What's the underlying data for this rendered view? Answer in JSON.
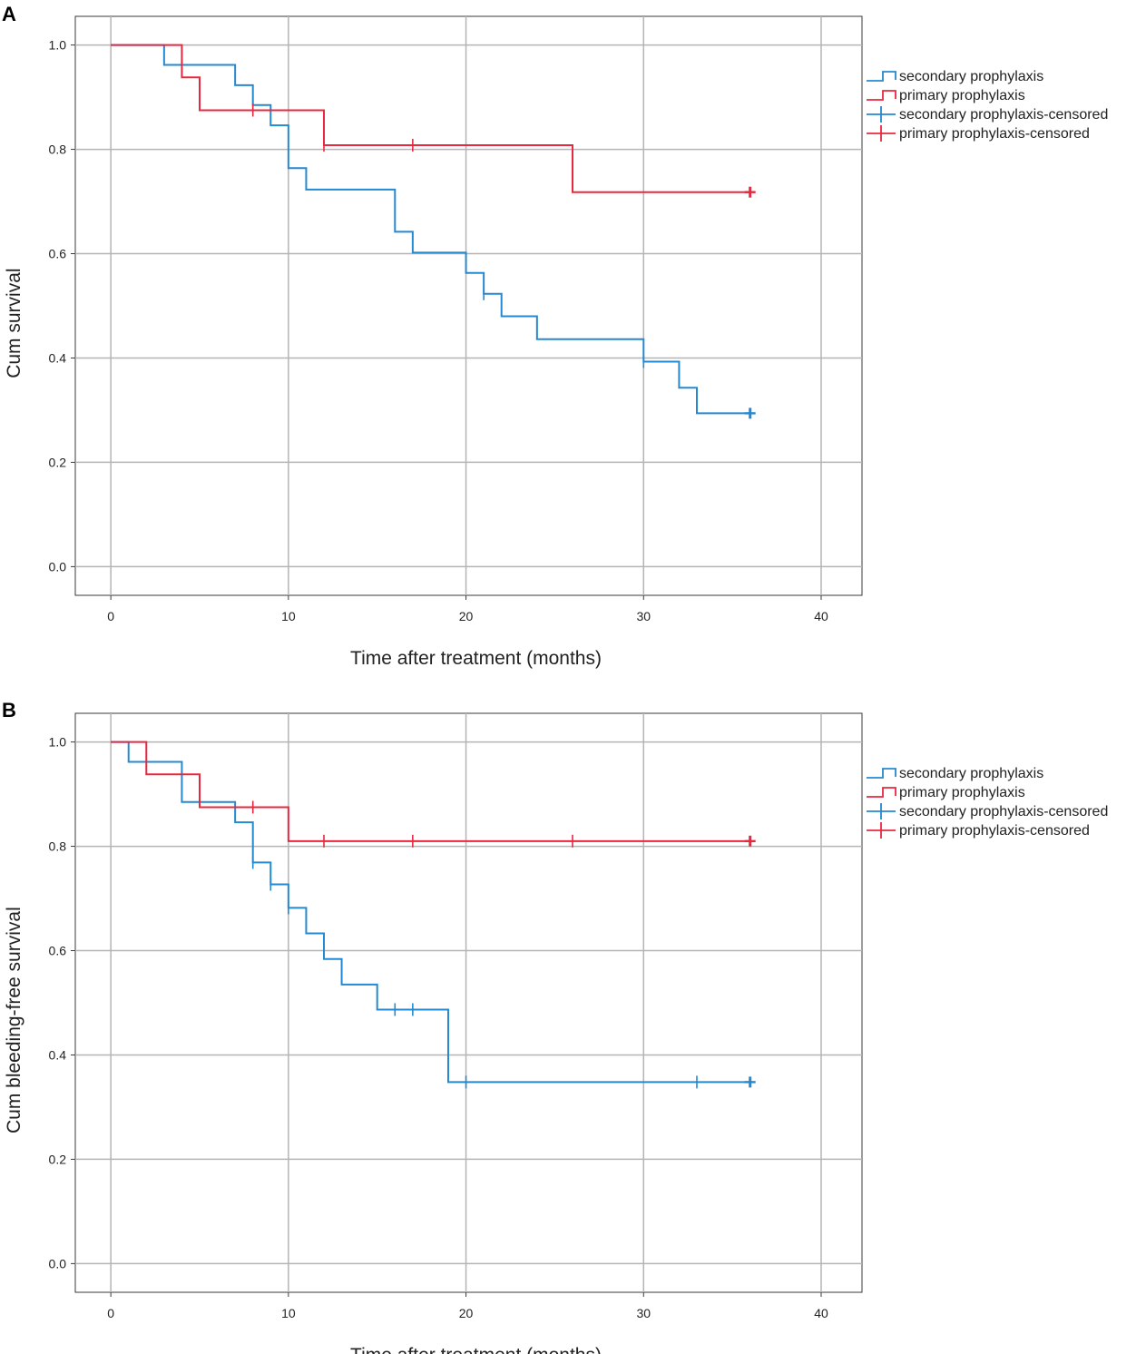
{
  "colors": {
    "secondary": "#2589d0",
    "primary": "#e8283f",
    "grid": "#b4b4b4",
    "axis": "#3a3a3a"
  },
  "chart_data": [
    {
      "panel_label": "A",
      "type": "line",
      "step": true,
      "xlabel": "Time after treatment (months)",
      "ylabel": "Cum survival",
      "xlim": [
        -2,
        42.3
      ],
      "ylim": [
        -0.055,
        1.055
      ],
      "xticks": [
        "0",
        "10",
        "20",
        "30",
        "40"
      ],
      "yticks": [
        "0.0",
        "0.2",
        "0.4",
        "0.6",
        "0.8",
        "1.0"
      ],
      "grid": true,
      "legend_position": "right",
      "legend": [
        "secondary prophylaxis",
        "primary prophylaxis",
        "secondary prophylaxis-censored",
        "primary prophylaxis-censored"
      ],
      "series": [
        {
          "name": "secondary prophylaxis",
          "color_key": "secondary",
          "x": [
            0,
            3,
            7,
            8,
            9,
            10,
            11,
            16,
            17,
            20,
            21,
            22,
            24,
            30,
            32,
            33,
            36
          ],
          "y": [
            1.0,
            0.962,
            0.923,
            0.885,
            0.846,
            0.764,
            0.723,
            0.642,
            0.602,
            0.563,
            0.523,
            0.48,
            0.436,
            0.393,
            0.343,
            0.294,
            0.294
          ],
          "censored": [
            {
              "x": 8,
              "y": 0.885
            },
            {
              "x": 21,
              "y": 0.523
            },
            {
              "x": 30,
              "y": 0.393
            },
            {
              "x": 36,
              "y": 0.294
            }
          ]
        },
        {
          "name": "primary prophylaxis",
          "color_key": "primary",
          "x": [
            0,
            4,
            5,
            12,
            26,
            36
          ],
          "y": [
            1.0,
            0.938,
            0.875,
            0.808,
            0.718,
            0.718
          ],
          "censored": [
            {
              "x": 8,
              "y": 0.875
            },
            {
              "x": 12,
              "y": 0.808
            },
            {
              "x": 17,
              "y": 0.808
            },
            {
              "x": 36,
              "y": 0.718
            }
          ]
        }
      ]
    },
    {
      "panel_label": "B",
      "type": "line",
      "step": true,
      "xlabel": "Time after treatment (months)",
      "ylabel": "Cum bleeding-free survival",
      "xlim": [
        -2,
        42.3
      ],
      "ylim": [
        -0.055,
        1.055
      ],
      "xticks": [
        "0",
        "10",
        "20",
        "30",
        "40"
      ],
      "yticks": [
        "0.0",
        "0.2",
        "0.4",
        "0.6",
        "0.8",
        "1.0"
      ],
      "grid": true,
      "legend_position": "right",
      "legend": [
        "secondary prophylaxis",
        "primary prophylaxis",
        "secondary prophylaxis-censored",
        "primary prophylaxis-censored"
      ],
      "series": [
        {
          "name": "secondary prophylaxis",
          "color_key": "secondary",
          "x": [
            0,
            1,
            4,
            7,
            8,
            9,
            10,
            11,
            12,
            13,
            15,
            19,
            36
          ],
          "y": [
            1.0,
            0.962,
            0.885,
            0.846,
            0.769,
            0.727,
            0.682,
            0.633,
            0.584,
            0.535,
            0.487,
            0.348,
            0.348
          ],
          "censored": [
            {
              "x": 8,
              "y": 0.769
            },
            {
              "x": 9,
              "y": 0.727
            },
            {
              "x": 10,
              "y": 0.682
            },
            {
              "x": 16,
              "y": 0.487
            },
            {
              "x": 17,
              "y": 0.487
            },
            {
              "x": 20,
              "y": 0.348
            },
            {
              "x": 33,
              "y": 0.348
            },
            {
              "x": 36,
              "y": 0.348
            }
          ]
        },
        {
          "name": "primary prophylaxis",
          "color_key": "primary",
          "x": [
            0,
            2,
            5,
            10,
            36
          ],
          "y": [
            1.0,
            0.938,
            0.875,
            0.81,
            0.81
          ],
          "censored": [
            {
              "x": 8,
              "y": 0.875
            },
            {
              "x": 12,
              "y": 0.81
            },
            {
              "x": 17,
              "y": 0.81
            },
            {
              "x": 26,
              "y": 0.81
            },
            {
              "x": 36,
              "y": 0.81
            }
          ]
        }
      ]
    }
  ]
}
